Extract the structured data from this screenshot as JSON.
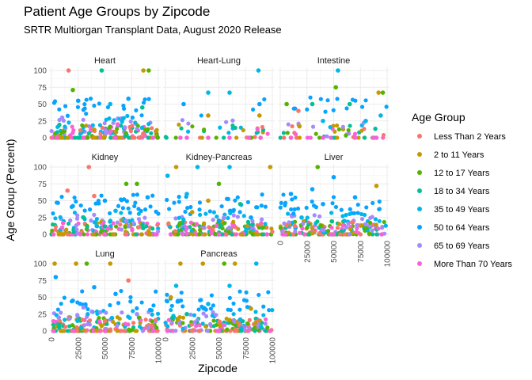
{
  "chart_data": {
    "type": "scatter",
    "title": "Patient Age Groups by Zipcode",
    "subtitle": "SRTR Multiorgan Transplant Data, August 2020 Release",
    "xlabel": "Zipcode",
    "ylabel": "Age Group (Percent)",
    "xlim": [
      0,
      100000
    ],
    "ylim": [
      0,
      100
    ],
    "x_ticks": [
      0,
      25000,
      50000,
      75000,
      100000
    ],
    "x_tick_labels": [
      "0",
      "25000",
      "50000",
      "75000",
      "100000"
    ],
    "y_ticks": [
      0,
      25,
      50,
      75,
      100
    ],
    "y_tick_labels": [
      "0",
      "25",
      "50",
      "75",
      "100"
    ],
    "grid": true,
    "facets": [
      "Heart",
      "Heart-Lung",
      "Intestine",
      "Kidney",
      "Kidney-Pancreas",
      "Liver",
      "Lung",
      "Pancreas"
    ],
    "legend": {
      "title": "Age Group",
      "position": "right",
      "entries": [
        {
          "name": "Less Than 2 Years",
          "color": "#F8766D"
        },
        {
          "name": "2 to 11 Years",
          "color": "#C49A00"
        },
        {
          "name": "12 to 17 Years",
          "color": "#53B400"
        },
        {
          "name": "18 to 34 Years",
          "color": "#00C094"
        },
        {
          "name": "35 to 49 Years",
          "color": "#00B6EB"
        },
        {
          "name": "50 to 64 Years",
          "color": "#06A4FF"
        },
        {
          "name": "65 to 69 Years",
          "color": "#A58AFF"
        },
        {
          "name": "More Than 70 Years",
          "color": "#FB61D7"
        }
      ]
    },
    "points": {
      "Heart": [
        [
          16000,
          100,
          0
        ],
        [
          47000,
          100,
          3
        ],
        [
          86000,
          100,
          1
        ],
        [
          91000,
          100,
          2
        ],
        [
          20000,
          71,
          2
        ],
        [
          72000,
          58,
          5
        ],
        [
          25000,
          55,
          5
        ],
        [
          55000,
          50,
          4
        ],
        [
          85000,
          45,
          3
        ],
        [
          10000,
          30,
          6
        ],
        [
          62000,
          20,
          7
        ],
        [
          40000,
          12,
          1
        ],
        [
          5000,
          0,
          7
        ],
        [
          30000,
          0,
          7
        ],
        [
          60000,
          0,
          7
        ],
        [
          95000,
          0,
          7
        ]
      ],
      "Heart-Lung": [
        [
          87000,
          100,
          4
        ],
        [
          40000,
          67,
          4
        ],
        [
          60000,
          67,
          4
        ],
        [
          17000,
          50,
          5
        ],
        [
          88000,
          50,
          5
        ],
        [
          40000,
          33,
          1
        ],
        [
          88000,
          33,
          1
        ],
        [
          14000,
          0,
          7
        ],
        [
          20000,
          0,
          7
        ],
        [
          40000,
          0,
          7
        ],
        [
          60000,
          0,
          7
        ],
        [
          78000,
          0,
          7
        ],
        [
          89000,
          0,
          7
        ]
      ],
      "Intestine": [
        [
          54000,
          100,
          4
        ],
        [
          52000,
          75,
          2
        ],
        [
          92000,
          67,
          1
        ],
        [
          96000,
          67,
          2
        ],
        [
          6000,
          50,
          2
        ],
        [
          30000,
          50,
          3
        ],
        [
          65000,
          50,
          3
        ],
        [
          17000,
          40,
          0
        ],
        [
          94000,
          33,
          4
        ],
        [
          40000,
          25,
          4
        ],
        [
          80000,
          25,
          4
        ],
        [
          18000,
          17,
          1
        ],
        [
          10000,
          0,
          7
        ],
        [
          40000,
          0,
          7
        ],
        [
          70000,
          0,
          7
        ],
        [
          90000,
          0,
          7
        ]
      ],
      "Kidney": [
        [
          35000,
          100,
          0
        ],
        [
          70000,
          75,
          2
        ],
        [
          80000,
          75,
          2
        ],
        [
          15000,
          65,
          0
        ],
        [
          40000,
          57,
          0
        ],
        [
          90000,
          55,
          5
        ],
        [
          50000,
          50,
          5
        ],
        [
          20000,
          42,
          5
        ],
        [
          60000,
          35,
          4
        ],
        [
          30000,
          25,
          3
        ],
        [
          70000,
          20,
          6
        ],
        [
          10000,
          10,
          7
        ],
        [
          2000,
          0,
          7
        ],
        [
          50000,
          0,
          7
        ],
        [
          97000,
          0,
          7
        ]
      ],
      "Kidney-Pancreas": [
        [
          10000,
          100,
          1
        ],
        [
          30000,
          100,
          4
        ],
        [
          60000,
          100,
          4
        ],
        [
          98000,
          100,
          1
        ],
        [
          2000,
          87,
          4
        ],
        [
          50000,
          75,
          2
        ],
        [
          20000,
          60,
          4
        ],
        [
          40000,
          50,
          1
        ],
        [
          70000,
          45,
          3
        ],
        [
          25000,
          33,
          1
        ],
        [
          80000,
          25,
          5
        ],
        [
          50000,
          20,
          5
        ],
        [
          60000,
          10,
          6
        ],
        [
          5000,
          0,
          7
        ],
        [
          50000,
          0,
          7
        ],
        [
          95000,
          0,
          7
        ]
      ],
      "Liver": [
        [
          35000,
          100,
          2
        ],
        [
          50000,
          85,
          5
        ],
        [
          90000,
          72,
          1
        ],
        [
          30000,
          67,
          5
        ],
        [
          10000,
          60,
          5
        ],
        [
          70000,
          55,
          5
        ],
        [
          40000,
          45,
          5
        ],
        [
          20000,
          25,
          4
        ],
        [
          60000,
          20,
          4
        ],
        [
          80000,
          15,
          6
        ],
        [
          5000,
          0,
          7
        ],
        [
          50000,
          0,
          7
        ],
        [
          95000,
          0,
          7
        ]
      ],
      "Lung": [
        [
          3000,
          100,
          1
        ],
        [
          23000,
          100,
          1
        ],
        [
          33000,
          100,
          2
        ],
        [
          55000,
          100,
          1
        ],
        [
          72000,
          75,
          0
        ],
        [
          4000,
          80,
          5
        ],
        [
          40000,
          65,
          5
        ],
        [
          60000,
          55,
          5
        ],
        [
          20000,
          45,
          5
        ],
        [
          30000,
          35,
          6
        ],
        [
          80000,
          25,
          6
        ],
        [
          50000,
          15,
          0
        ],
        [
          2000,
          0,
          7
        ],
        [
          50000,
          0,
          7
        ],
        [
          95000,
          0,
          7
        ]
      ],
      "Pancreas": [
        [
          14000,
          100,
          1
        ],
        [
          35000,
          100,
          1
        ],
        [
          55000,
          100,
          2
        ],
        [
          65000,
          100,
          1
        ],
        [
          85000,
          100,
          4
        ],
        [
          10000,
          67,
          4
        ],
        [
          60000,
          67,
          4
        ],
        [
          5000,
          50,
          1
        ],
        [
          40000,
          40,
          4
        ],
        [
          80000,
          33,
          1
        ],
        [
          20000,
          25,
          3
        ],
        [
          70000,
          17,
          4
        ],
        [
          2000,
          0,
          7
        ],
        [
          50000,
          0,
          7
        ],
        [
          98000,
          0,
          7
        ]
      ]
    }
  }
}
